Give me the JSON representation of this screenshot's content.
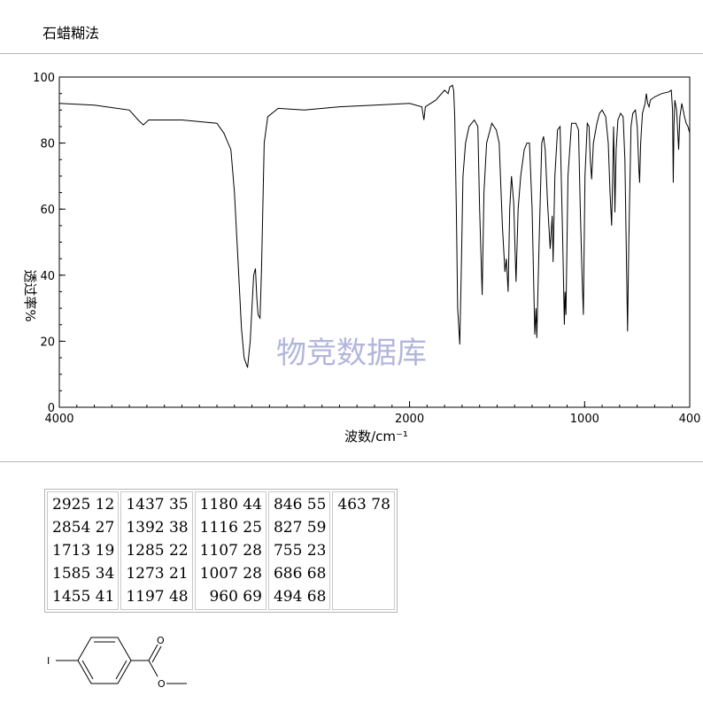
{
  "header": {
    "method": "石蜡糊法"
  },
  "chart_data": {
    "type": "line",
    "title": "",
    "xlabel": "波数/cm⁻¹",
    "ylabel": "透过率%",
    "xlim": [
      4000,
      400
    ],
    "ylim": [
      0,
      100
    ],
    "xticks": [
      4000,
      2000,
      1000,
      400
    ],
    "yticks": [
      0,
      20,
      40,
      60,
      80,
      100
    ],
    "watermark": "物竞数据库",
    "series": [
      {
        "color": "#000000",
        "points": [
          [
            4000,
            92
          ],
          [
            3800,
            91.5
          ],
          [
            3600,
            90
          ],
          [
            3550,
            87
          ],
          [
            3520,
            85.5
          ],
          [
            3490,
            87
          ],
          [
            3300,
            87
          ],
          [
            3100,
            86
          ],
          [
            3060,
            83
          ],
          [
            3020,
            78
          ],
          [
            3000,
            65
          ],
          [
            2980,
            45
          ],
          [
            2960,
            24
          ],
          [
            2945,
            15
          ],
          [
            2925,
            12
          ],
          [
            2910,
            20
          ],
          [
            2890,
            40
          ],
          [
            2880,
            42
          ],
          [
            2872,
            33
          ],
          [
            2865,
            28
          ],
          [
            2854,
            27
          ],
          [
            2845,
            42
          ],
          [
            2830,
            80
          ],
          [
            2810,
            88
          ],
          [
            2750,
            90.5
          ],
          [
            2600,
            90
          ],
          [
            2400,
            91
          ],
          [
            2200,
            91.5
          ],
          [
            2000,
            92
          ],
          [
            1930,
            91
          ],
          [
            1918,
            87
          ],
          [
            1910,
            91
          ],
          [
            1850,
            93
          ],
          [
            1800,
            96
          ],
          [
            1780,
            95
          ],
          [
            1770,
            97
          ],
          [
            1755,
            97.5
          ],
          [
            1748,
            96
          ],
          [
            1742,
            88
          ],
          [
            1733,
            60
          ],
          [
            1725,
            30
          ],
          [
            1713,
            19
          ],
          [
            1705,
            40
          ],
          [
            1695,
            70
          ],
          [
            1680,
            80
          ],
          [
            1660,
            85
          ],
          [
            1630,
            87
          ],
          [
            1610,
            85
          ],
          [
            1600,
            60
          ],
          [
            1585,
            34
          ],
          [
            1575,
            65
          ],
          [
            1560,
            80
          ],
          [
            1530,
            86
          ],
          [
            1505,
            84
          ],
          [
            1488,
            80
          ],
          [
            1470,
            55
          ],
          [
            1455,
            41
          ],
          [
            1447,
            45
          ],
          [
            1437,
            35
          ],
          [
            1428,
            60
          ],
          [
            1418,
            70
          ],
          [
            1405,
            62
          ],
          [
            1392,
            38
          ],
          [
            1380,
            60
          ],
          [
            1365,
            70
          ],
          [
            1345,
            78
          ],
          [
            1330,
            80
          ],
          [
            1315,
            80
          ],
          [
            1300,
            60
          ],
          [
            1285,
            22
          ],
          [
            1278,
            30
          ],
          [
            1273,
            21
          ],
          [
            1260,
            50
          ],
          [
            1245,
            80
          ],
          [
            1235,
            82
          ],
          [
            1225,
            78
          ],
          [
            1212,
            62
          ],
          [
            1197,
            48
          ],
          [
            1185,
            58
          ],
          [
            1180,
            44
          ],
          [
            1170,
            70
          ],
          [
            1155,
            84
          ],
          [
            1140,
            85
          ],
          [
            1125,
            50
          ],
          [
            1116,
            25
          ],
          [
            1112,
            35
          ],
          [
            1107,
            28
          ],
          [
            1095,
            70
          ],
          [
            1075,
            86
          ],
          [
            1050,
            86
          ],
          [
            1035,
            84
          ],
          [
            1025,
            60
          ],
          [
            1015,
            40
          ],
          [
            1007,
            28
          ],
          [
            998,
            70
          ],
          [
            985,
            86
          ],
          [
            975,
            85
          ],
          [
            968,
            75
          ],
          [
            960,
            69
          ],
          [
            950,
            80
          ],
          [
            930,
            86
          ],
          [
            915,
            89
          ],
          [
            900,
            90
          ],
          [
            880,
            88
          ],
          [
            865,
            80
          ],
          [
            855,
            65
          ],
          [
            846,
            55
          ],
          [
            840,
            70
          ],
          [
            835,
            85
          ],
          [
            830,
            70
          ],
          [
            827,
            59
          ],
          [
            820,
            78
          ],
          [
            810,
            87
          ],
          [
            795,
            89
          ],
          [
            780,
            88
          ],
          [
            770,
            75
          ],
          [
            760,
            40
          ],
          [
            755,
            23
          ],
          [
            748,
            50
          ],
          [
            735,
            85
          ],
          [
            725,
            89
          ],
          [
            710,
            90
          ],
          [
            700,
            85
          ],
          [
            690,
            72
          ],
          [
            686,
            68
          ],
          [
            680,
            80
          ],
          [
            670,
            89
          ],
          [
            655,
            92
          ],
          [
            648,
            95
          ],
          [
            640,
            92
          ],
          [
            632,
            91
          ],
          [
            625,
            93
          ],
          [
            600,
            94
          ],
          [
            560,
            95
          ],
          [
            520,
            95.5
          ],
          [
            505,
            96
          ],
          [
            498,
            90
          ],
          [
            494,
            68
          ],
          [
            490,
            85
          ],
          [
            485,
            93
          ],
          [
            475,
            90
          ],
          [
            470,
            85
          ],
          [
            463,
            78
          ],
          [
            456,
            88
          ],
          [
            445,
            92
          ],
          [
            430,
            88
          ],
          [
            420,
            86
          ],
          [
            410,
            85
          ],
          [
            400,
            83
          ]
        ]
      }
    ]
  },
  "peak_table": {
    "columns": [
      [
        "2925 12",
        "2854 27",
        "1713 19",
        "1585 34",
        "1455 41"
      ],
      [
        "1437 35",
        "1392 38",
        "1285 22",
        "1273 21",
        "1197 48"
      ],
      [
        "1180 44",
        "1116 25",
        "1107 28",
        "1007 28",
        "960 69"
      ],
      [
        "846 55",
        "827 59",
        "755 23",
        "686 68",
        "494 68"
      ],
      [
        "463 78"
      ]
    ]
  },
  "structure": {
    "atom_I": "I",
    "atom_O1": "O",
    "atom_O2": "O"
  }
}
